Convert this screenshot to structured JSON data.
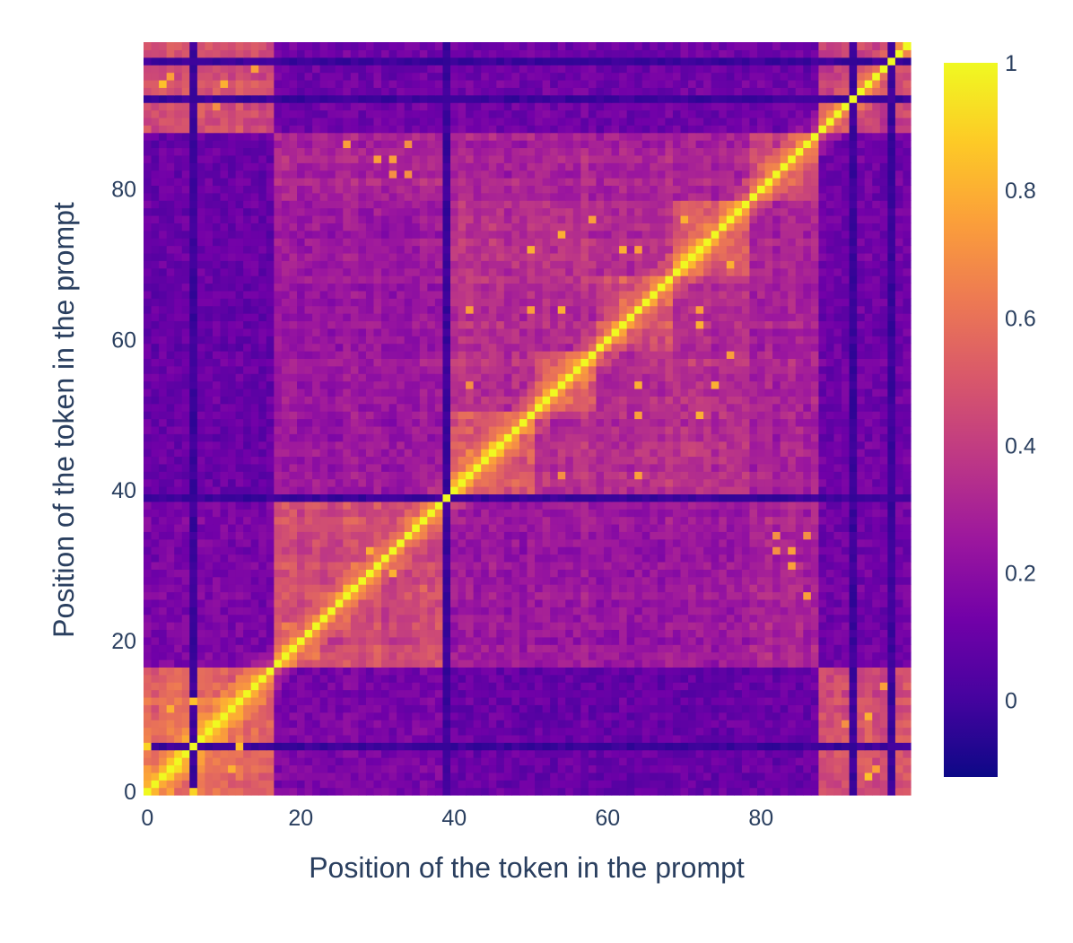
{
  "chart_data": {
    "type": "heatmap",
    "title": "",
    "xlabel": "Position of the token in the prompt",
    "ylabel": "Position of the token in the prompt",
    "n": 100,
    "x_range": [
      0,
      99
    ],
    "y_range": [
      0,
      99
    ],
    "x_ticks": [
      0,
      20,
      40,
      60,
      80
    ],
    "y_ticks": [
      0,
      20,
      40,
      60,
      80
    ],
    "colorscale": "Plasma",
    "colorscale_stops": [
      "#0d0887",
      "#46039f",
      "#7201a8",
      "#9c179e",
      "#bd3786",
      "#d8576b",
      "#ed7953",
      "#fb9f3a",
      "#fdca26",
      "#f0f921"
    ],
    "zmin": -0.12,
    "zmax": 1,
    "colorbar_ticks": [
      0,
      0.2,
      0.4,
      0.6,
      0.8,
      1
    ],
    "colorbar_tick_labels": [
      "0",
      "0.2",
      "0.4",
      "0.6",
      "0.8",
      "1"
    ],
    "diagonal_value": 1,
    "segments": [
      [
        0,
        16
      ],
      [
        17,
        39
      ],
      [
        40,
        50
      ],
      [
        51,
        58
      ],
      [
        59,
        68
      ],
      [
        69,
        78
      ],
      [
        79,
        87
      ],
      [
        88,
        99
      ]
    ],
    "block_similarity": [
      [
        0.55,
        0.15,
        0.1,
        0.1,
        0.1,
        0.1,
        0.1,
        0.45
      ],
      [
        0.15,
        0.45,
        0.25,
        0.25,
        0.25,
        0.25,
        0.3,
        0.12
      ],
      [
        0.1,
        0.25,
        0.5,
        0.35,
        0.35,
        0.35,
        0.3,
        0.12
      ],
      [
        0.1,
        0.25,
        0.35,
        0.5,
        0.35,
        0.35,
        0.3,
        0.12
      ],
      [
        0.1,
        0.25,
        0.35,
        0.35,
        0.5,
        0.35,
        0.3,
        0.12
      ],
      [
        0.1,
        0.25,
        0.35,
        0.35,
        0.35,
        0.5,
        0.3,
        0.12
      ],
      [
        0.1,
        0.3,
        0.3,
        0.3,
        0.3,
        0.3,
        0.45,
        0.12
      ],
      [
        0.45,
        0.12,
        0.12,
        0.12,
        0.12,
        0.12,
        0.12,
        0.4
      ]
    ],
    "low_rows": [
      6,
      92,
      97,
      39
    ],
    "low_rows_value": -0.05,
    "bright_cells": [
      [
        6,
        0,
        0.9
      ],
      [
        6,
        12,
        0.85
      ],
      [
        11,
        3,
        0.8
      ],
      [
        94,
        2,
        0.85
      ],
      [
        94,
        10,
        0.8
      ],
      [
        86,
        26,
        0.75
      ],
      [
        86,
        34,
        0.7
      ],
      [
        84,
        32,
        0.75
      ],
      [
        76,
        58,
        0.75
      ],
      [
        76,
        70,
        0.8
      ],
      [
        72,
        50,
        0.8
      ],
      [
        72,
        62,
        0.8
      ],
      [
        64,
        50,
        0.75
      ],
      [
        64,
        72,
        0.75
      ],
      [
        54,
        42,
        0.75
      ],
      [
        54,
        64,
        0.8
      ],
      [
        54,
        74,
        0.8
      ],
      [
        42,
        54,
        0.7
      ],
      [
        42,
        64,
        0.75
      ],
      [
        34,
        82,
        0.7
      ],
      [
        32,
        82,
        0.7
      ],
      [
        30,
        84,
        0.75
      ],
      [
        14,
        96,
        0.75
      ],
      [
        9,
        91,
        0.7
      ],
      [
        3,
        95,
        0.75
      ],
      [
        32,
        29,
        0.8
      ],
      [
        29,
        32,
        0.8
      ],
      [
        22,
        18,
        0.65
      ],
      [
        46,
        44,
        0.65
      ]
    ]
  },
  "colorbar": {
    "labels": [
      "0",
      "0.2",
      "0.4",
      "0.6",
      "0.8",
      "1"
    ]
  }
}
